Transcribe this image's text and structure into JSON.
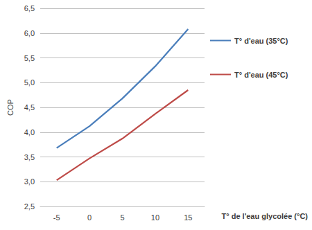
{
  "chart_data": {
    "type": "line",
    "x_label": "T° de l'eau glycolée (°C)",
    "y_label": "COP",
    "categories": [
      "-5",
      "0",
      "5",
      "10",
      "15"
    ],
    "series": [
      {
        "name": "T° d'eau (35°C)",
        "color": "#4a7ebb",
        "values": [
          3.68,
          4.12,
          4.68,
          5.33,
          6.08
        ]
      },
      {
        "name": "T° d'eau (45°C)",
        "color": "#be4b48",
        "values": [
          3.03,
          3.47,
          3.87,
          4.37,
          4.85
        ]
      }
    ],
    "ylim": [
      2.5,
      6.5
    ],
    "yticks": [
      {
        "value": 2.5,
        "label": "2,5"
      },
      {
        "value": 3,
        "label": "3,0"
      },
      {
        "value": 3.5,
        "label": "3,5"
      },
      {
        "value": 4,
        "label": "4,0"
      },
      {
        "value": 4.5,
        "label": "4,5"
      },
      {
        "value": 5,
        "label": "5,0"
      },
      {
        "value": 5.5,
        "label": "5,5"
      },
      {
        "value": 6,
        "label": "6,0"
      },
      {
        "value": 6.5,
        "label": "6,5"
      }
    ],
    "grid": true,
    "legend": "right"
  }
}
